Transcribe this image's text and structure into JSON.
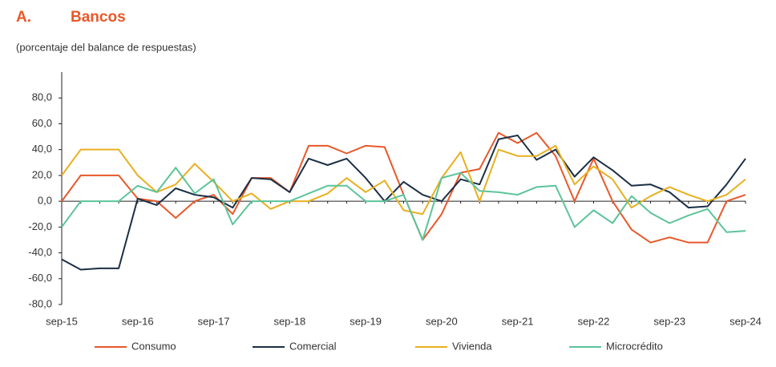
{
  "chart_data": {
    "type": "line",
    "title_label": "A.",
    "title": "Bancos",
    "subtitle": "(porcentaje del balance de respuestas)",
    "categories": [
      "sep-15",
      null,
      null,
      null,
      "sep-16",
      null,
      null,
      null,
      "sep-17",
      null,
      null,
      null,
      "sep-18",
      null,
      null,
      null,
      "sep-19",
      null,
      null,
      null,
      "sep-20",
      null,
      null,
      null,
      "sep-21",
      null,
      null,
      null,
      "sep-22",
      null,
      null,
      null,
      "sep-23",
      null,
      null,
      null,
      "sep-24"
    ],
    "ylim": [
      -80,
      100
    ],
    "yticks": [
      {
        "value": -80,
        "label": "-80,0"
      },
      {
        "value": -60,
        "label": "-60,0"
      },
      {
        "value": -40,
        "label": "-40,0"
      },
      {
        "value": -20,
        "label": "-20,0"
      },
      {
        "value": 0,
        "label": "0,0"
      },
      {
        "value": 20,
        "label": "20,0"
      },
      {
        "value": 40,
        "label": "40,0"
      },
      {
        "value": 60,
        "label": "60,0"
      },
      {
        "value": 80,
        "label": "80,0"
      }
    ],
    "series": [
      {
        "name": "Consumo",
        "color": "#e8582a",
        "values": [
          0,
          20,
          20,
          20,
          2,
          0,
          -13,
          0,
          5,
          -10,
          18,
          18,
          7,
          43,
          43,
          37,
          43,
          42,
          5,
          -30,
          -10,
          22,
          25,
          53,
          45,
          53,
          35,
          0,
          33,
          0,
          -22,
          -32,
          -28,
          -32,
          -32,
          0,
          5
        ]
      },
      {
        "name": "Comercial",
        "color": "#1b2f45",
        "values": [
          -45,
          -53,
          -52,
          -52,
          2,
          -3,
          10,
          5,
          3,
          -5,
          18,
          17,
          7,
          33,
          28,
          33,
          18,
          0,
          15,
          5,
          0,
          17,
          13,
          48,
          51,
          32,
          40,
          19,
          34,
          24,
          12,
          13,
          7,
          -5,
          -4,
          13,
          33
        ]
      },
      {
        "name": "Vivienda",
        "color": "#e8b020",
        "values": [
          20,
          40,
          40,
          40,
          20,
          7,
          13,
          29,
          15,
          0,
          6,
          -6,
          0,
          0,
          6,
          18,
          7,
          16,
          -7,
          -10,
          18,
          38,
          0,
          40,
          35,
          35,
          43,
          13,
          27,
          17,
          -5,
          4,
          11,
          5,
          0,
          5,
          17
        ]
      },
      {
        "name": "Microcrédito",
        "color": "#5cc49a",
        "values": [
          -20,
          0,
          0,
          0,
          12,
          7,
          26,
          6,
          17,
          -18,
          0,
          0,
          0,
          6,
          12,
          12,
          0,
          0,
          5,
          -30,
          18,
          22,
          8,
          7,
          5,
          11,
          12,
          -20,
          -7,
          -17,
          4,
          -9,
          -17,
          -11,
          -6,
          -24,
          -23
        ]
      }
    ]
  }
}
